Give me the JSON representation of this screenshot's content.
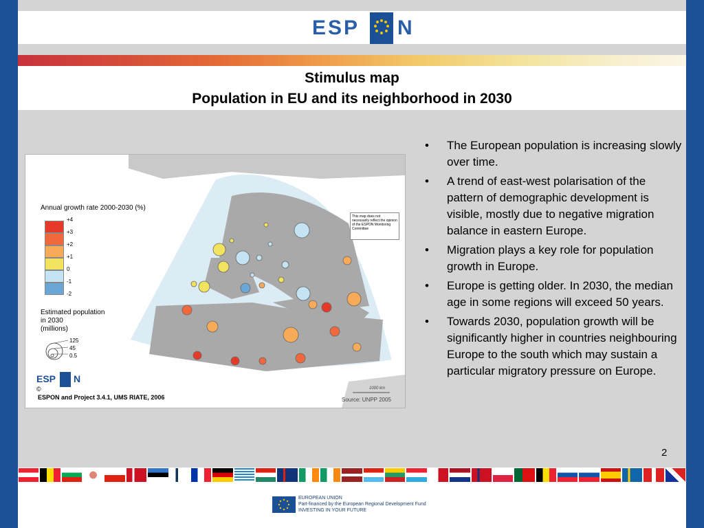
{
  "header": {
    "logo_text": "ESP",
    "logo_suffix": "N"
  },
  "title": {
    "line1": "Stimulus map",
    "line2": "Population in EU and its neighborhood in 2030"
  },
  "map": {
    "legend_title": "Annual growth rate 2000-2030 (%)",
    "legend_items": [
      {
        "label": "+4",
        "color": "#e53a2a"
      },
      {
        "label": "+3",
        "color": "#f0683b"
      },
      {
        "label": "+2",
        "color": "#f7ab58"
      },
      {
        "label": "+1",
        "color": "#f2e35e"
      },
      {
        "label": "0",
        "color": "#f2e35e"
      },
      {
        "label": "-1",
        "color": "#c4e4f3"
      },
      {
        "label": "-2",
        "color": "#6aa6d6"
      }
    ],
    "estimated_title_1": "Estimated population",
    "estimated_title_2": "in 2030",
    "estimated_title_3": "(millions)",
    "sizes": [
      "125",
      "45",
      "0.5"
    ],
    "disclaimer": "This map does not necessarily reflect the opinion of the ESPON Monitoring Committee",
    "scale_label": "1000 km",
    "mini_logo": "ESP",
    "mini_logo_suffix": "N",
    "copyright": "©",
    "credit": "ESPON and Project 3.4.1, UMS RIATE, 2006",
    "source": "Source: UNPP 2005"
  },
  "bullets": [
    "The European population is increasing slowly over time.",
    "A trend of east-west polarisation of the pattern of demographic development is visible, mostly due to negative migration balance in eastern Europe.",
    "Migration plays a key role for population growth in Europe.",
    "Europe is getting older. In 2030, the median age in some regions will exceed 50 years.",
    "Towards 2030, population growth will be significantly higher in countries neighbouring Europe to the south which may sustain a particular migratory pressure on Europe."
  ],
  "bullet_symbol": "•",
  "page_number": "2",
  "footer": {
    "line1": "EUROPEAN UNION",
    "line2": "Part-financed by the European Regional Development Fund",
    "line3": "INVESTING IN YOUR FUTURE"
  }
}
